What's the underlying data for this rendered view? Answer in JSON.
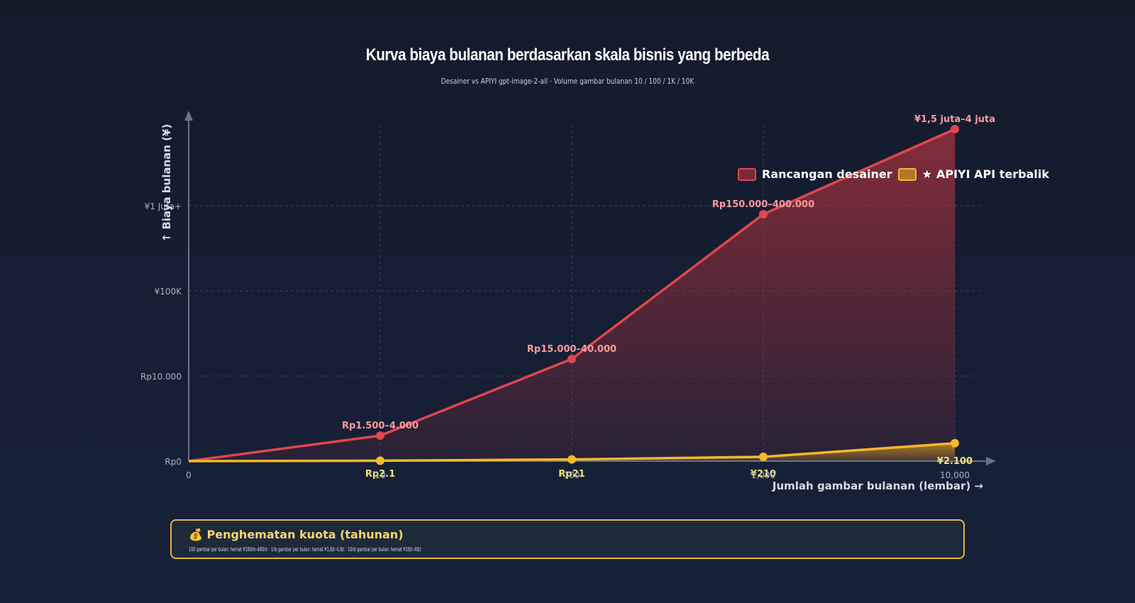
{
  "title": "Kurva biaya bulanan berdasarkan skala bisnis yang berbeda",
  "subtitle": "Desainer vs APIYI gpt-image-2-all · Volume gambar bulanan 10 / 100 / 1K / 10K",
  "colors": {
    "designer": "#e0464d",
    "api": "#f5b82a",
    "grid": "#3a4558",
    "axis": "#6a7488"
  },
  "chart_data": {
    "type": "area",
    "title": "Kurva biaya bulanan berdasarkan skala bisnis yang berbeda",
    "xlabel": "Jumlah gambar bulanan (lembar) →",
    "ylabel": "↑ Biaya bulanan (¥)",
    "x_ticks": [
      "0",
      "10",
      "100",
      "1,000",
      "10,000"
    ],
    "x": [
      0,
      10,
      100,
      1000,
      10000
    ],
    "y_ticks": [
      "Rp0",
      "Rp10.000",
      "¥100K",
      "¥1 Juta+"
    ],
    "y_tick_levels": [
      0,
      1,
      2,
      3
    ],
    "grid": true,
    "legend_position": "top-right",
    "series": [
      {
        "name": "Rancangan desainer",
        "levels": [
          0,
          0.3,
          1.2,
          2.9,
          3.9
        ],
        "labels": [
          "",
          "Rp1.500–4.000",
          "Rp15.000–40.000",
          "Rp150.000–400.000",
          "¥1,5 juta–4 juta"
        ]
      },
      {
        "name": "★ APIYI API terbalik",
        "levels": [
          0,
          0.005,
          0.02,
          0.05,
          0.21
        ],
        "labels": [
          "",
          "Rp2.1",
          "Rp21",
          "¥210",
          "¥2.100"
        ]
      }
    ]
  },
  "legend": {
    "designer": "Rancangan desainer",
    "api": "APIYI API terbalik",
    "star": "★"
  },
  "savings": {
    "icon": "💰",
    "title": "Penghematan kuota (tahunan)",
    "text": "100 gambar per bulan: hemat ¥180rb–480rb · 1rb gambar per bulan: hemat ¥1,8jt–4,8jt · 10rb gambar per bulan: hemat ¥18jt–48jt"
  }
}
